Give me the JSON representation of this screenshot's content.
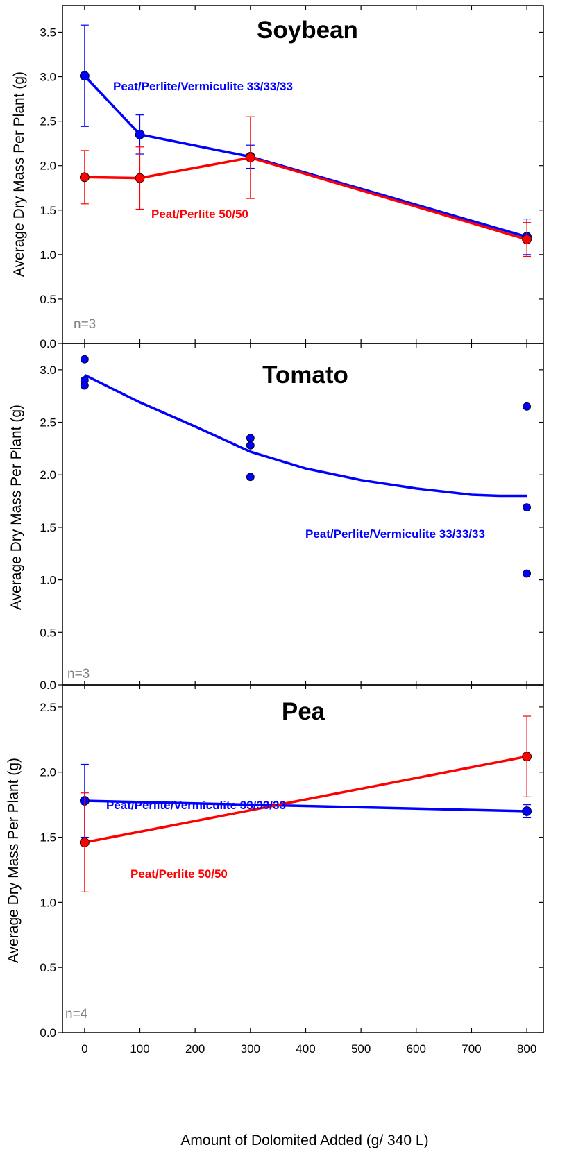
{
  "colors": {
    "blue": "#0000ff",
    "red": "#ff0000",
    "gray": "#808080",
    "axis": "#000000"
  },
  "x_axis": {
    "label": "Amount of Dolomited Added (g/ 340 L)",
    "ticks": [
      0,
      100,
      200,
      300,
      400,
      500,
      600,
      700,
      800
    ],
    "tick_labels": [
      "0",
      "100",
      "200",
      "300",
      "400",
      "500",
      "600",
      "700",
      "800"
    ]
  },
  "chart_data": [
    {
      "type": "line",
      "title": "Soybean",
      "ylabel": "Average Dry Mass Per Plant (g)",
      "ylim": [
        0,
        3.8
      ],
      "xlim": [
        -40,
        830
      ],
      "yticks": [
        0,
        0.5,
        1.0,
        1.5,
        2.0,
        2.5,
        3.0,
        3.5
      ],
      "ytick_labels": [
        "0.0",
        "0.5",
        "1.0",
        "1.5",
        "2.0",
        "2.5",
        "3.0",
        "3.5"
      ],
      "note": "n=3",
      "series": [
        {
          "name": "Peat/Perlite/Vermiculite 33/33/33",
          "color": "#0000ff",
          "x": [
            0,
            100,
            300,
            800
          ],
          "y": [
            3.01,
            2.35,
            2.1,
            1.2
          ],
          "err": [
            0.57,
            0.22,
            0.13,
            0.2
          ]
        },
        {
          "name": "Peat/Perlite 50/50",
          "color": "#ff0000",
          "x": [
            0,
            100,
            300,
            800
          ],
          "y": [
            1.87,
            1.86,
            2.09,
            1.17
          ],
          "err": [
            0.3,
            0.35,
            0.46,
            0.19
          ]
        }
      ]
    },
    {
      "type": "scatter",
      "title": "Tomato",
      "ylabel": "Average Dry Mass Per Plant (g)",
      "ylim": [
        0,
        3.25
      ],
      "xlim": [
        -40,
        830
      ],
      "yticks": [
        0,
        0.5,
        1.0,
        1.5,
        2.0,
        2.5,
        3.0
      ],
      "ytick_labels": [
        "0.0",
        "0.5",
        "1.0",
        "1.5",
        "2.0",
        "2.5",
        "3.0"
      ],
      "note": "n=3",
      "series": [
        {
          "name": "Peat/Perlite/Vermiculite 33/33/33",
          "color": "#0000ff",
          "points": [
            [
              0,
              3.1
            ],
            [
              0,
              2.9
            ],
            [
              0,
              2.85
            ],
            [
              300,
              2.35
            ],
            [
              300,
              2.28
            ],
            [
              300,
              1.98
            ],
            [
              800,
              2.65
            ],
            [
              800,
              1.69
            ],
            [
              800,
              1.06
            ]
          ],
          "fit": {
            "kind": "quadratic",
            "x": [
              0,
              100,
              200,
              300,
              400,
              500,
              600,
              700,
              750,
              800
            ],
            "y": [
              2.95,
              2.69,
              2.46,
              2.22,
              2.06,
              1.95,
              1.87,
              1.81,
              1.8,
              1.8
            ]
          }
        }
      ]
    },
    {
      "type": "line",
      "title": "Pea",
      "ylabel": "Average Dry Mass Per Plant (g)",
      "ylim": [
        0,
        2.67
      ],
      "xlim": [
        -40,
        830
      ],
      "yticks": [
        0,
        0.5,
        1.0,
        1.5,
        2.0,
        2.5
      ],
      "ytick_labels": [
        "0.0",
        "0.5",
        "1.0",
        "1.5",
        "2.0",
        "2.5"
      ],
      "note": "n=4",
      "series": [
        {
          "name": "Peat/Perlite/Vermiculite 33/33/33",
          "color": "#0000ff",
          "x": [
            0,
            800
          ],
          "y": [
            1.78,
            1.7
          ],
          "err": [
            0.28,
            0.05
          ]
        },
        {
          "name": "Peat/Perlite 50/50",
          "color": "#ff0000",
          "x": [
            0,
            800
          ],
          "y": [
            1.46,
            2.12
          ],
          "err": [
            0.38,
            0.31
          ]
        }
      ]
    }
  ]
}
